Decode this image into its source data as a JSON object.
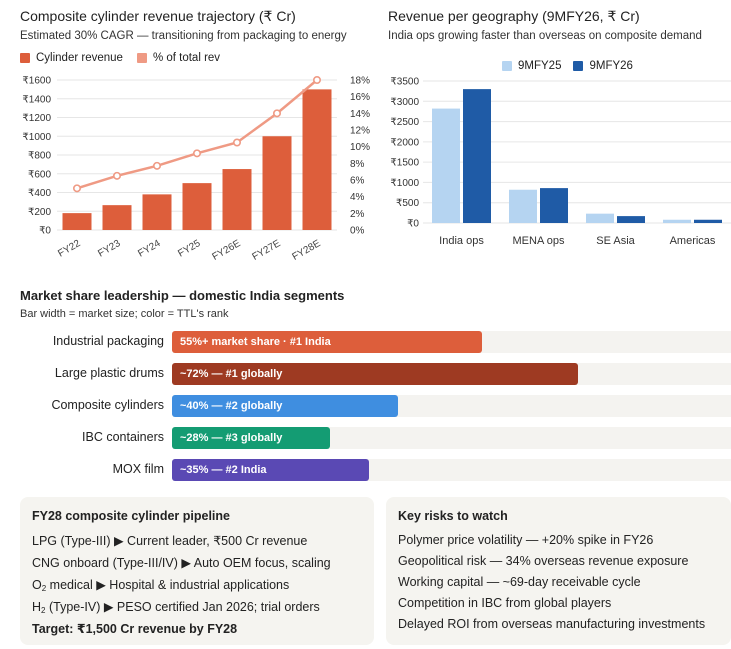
{
  "colors": {
    "bar": "#dd5e3b",
    "line": "#ef9a84",
    "fy25": "#b5d4f1",
    "fy26": "#1f5ba6",
    "grid": "#e6e6e6",
    "track": "#f4f3f0",
    "ms": [
      "#dd5e3b",
      "#9e3a22",
      "#3f8ee0",
      "#149c73",
      "#5a49b4"
    ]
  },
  "left_chart": {
    "title": "Composite cylinder revenue trajectory (₹ Cr)",
    "subtitle": "Estimated 30% CAGR — transitioning from packaging to energy",
    "legend": [
      "Cylinder revenue",
      "% of total rev"
    ]
  },
  "right_chart": {
    "title": "Revenue per geography (9MFY26, ₹ Cr)",
    "subtitle": "India ops growing faster than overseas on composite demand",
    "legend": [
      "9MFY25",
      "9MFY26"
    ]
  },
  "market_share": {
    "title": "Market share leadership — domestic India segments",
    "subtitle": "Bar width = market size; color = TTL's rank"
  },
  "chart_data": [
    {
      "type": "bar",
      "title": "Composite cylinder revenue trajectory (₹ Cr)",
      "categories": [
        "FY22",
        "FY23",
        "FY24",
        "FY25",
        "FY26E",
        "FY27E",
        "FY28E"
      ],
      "series": [
        {
          "name": "Cylinder revenue",
          "axis": "left",
          "type": "bar",
          "values": [
            180,
            265,
            380,
            500,
            650,
            1000,
            1500
          ]
        },
        {
          "name": "% of total rev",
          "axis": "right",
          "type": "line",
          "values": [
            5,
            6.5,
            7.7,
            9.2,
            10.5,
            14,
            18
          ]
        }
      ],
      "y_left": {
        "ylim": [
          0,
          1600
        ],
        "ticks": [
          "₹1600",
          "₹1400",
          "₹1200",
          "₹1000",
          "₹800",
          "₹600",
          "₹400",
          "₹200",
          "₹0"
        ]
      },
      "y_right": {
        "ylim": [
          0,
          18
        ],
        "ticks": [
          "18%",
          "16%",
          "14%",
          "12%",
          "10%",
          "8%",
          "6%",
          "4%",
          "2%",
          "0%"
        ]
      }
    },
    {
      "type": "bar",
      "title": "Revenue per geography (9MFY26, ₹ Cr)",
      "categories": [
        "India ops",
        "MENA ops",
        "SE Asia",
        "Americas"
      ],
      "series": [
        {
          "name": "9MFY25",
          "values": [
            2820,
            820,
            230,
            80
          ]
        },
        {
          "name": "9MFY26",
          "values": [
            3300,
            860,
            170,
            80
          ]
        }
      ],
      "ylim": [
        0,
        3500
      ],
      "ticks": [
        "₹3500",
        "₹3000",
        "₹2500",
        "₹2000",
        "₹1500",
        "₹1000",
        "₹500",
        "₹0"
      ]
    },
    {
      "type": "bar",
      "orientation": "horizontal",
      "title": "Market share leadership — domestic India segments",
      "categories": [
        "Industrial packaging",
        "Large plastic drums",
        "Composite cylinders",
        "IBC containers",
        "MOX film"
      ],
      "values": [
        55,
        72,
        40,
        28,
        35
      ],
      "labels": [
        "55%+ market share · #1 India",
        "~72% — #1 globally",
        "~40% — #2 globally",
        "~28% — #3 globally",
        "~35% — #2 India"
      ]
    }
  ],
  "pipeline_card": {
    "title": "FY28 composite cylinder pipeline",
    "lines": [
      {
        "prefix": "LPG (Type-III)",
        "sub": "",
        "rest": " ▶ Current leader, ₹500 Cr revenue"
      },
      {
        "prefix": "CNG onboard (Type-III/IV)",
        "sub": "",
        "rest": " ▶ Auto OEM focus, scaling"
      },
      {
        "prefix": "O",
        "sub": "2",
        "rest": " medical ▶ Hospital & industrial applications"
      },
      {
        "prefix": "H",
        "sub": "2",
        "rest": " (Type-IV) ▶ PESO certified Jan 2026; trial orders"
      }
    ],
    "target": "Target: ₹1,500 Cr revenue by FY28"
  },
  "risks_card": {
    "title": "Key risks to watch",
    "items": [
      "Polymer price volatility — +20% spike in FY26",
      "Geopolitical risk — 34% overseas revenue exposure",
      "Working capital — ~69-day receivable cycle",
      "Competition in IBC from global players",
      "Delayed ROI from overseas manufacturing investments"
    ]
  }
}
